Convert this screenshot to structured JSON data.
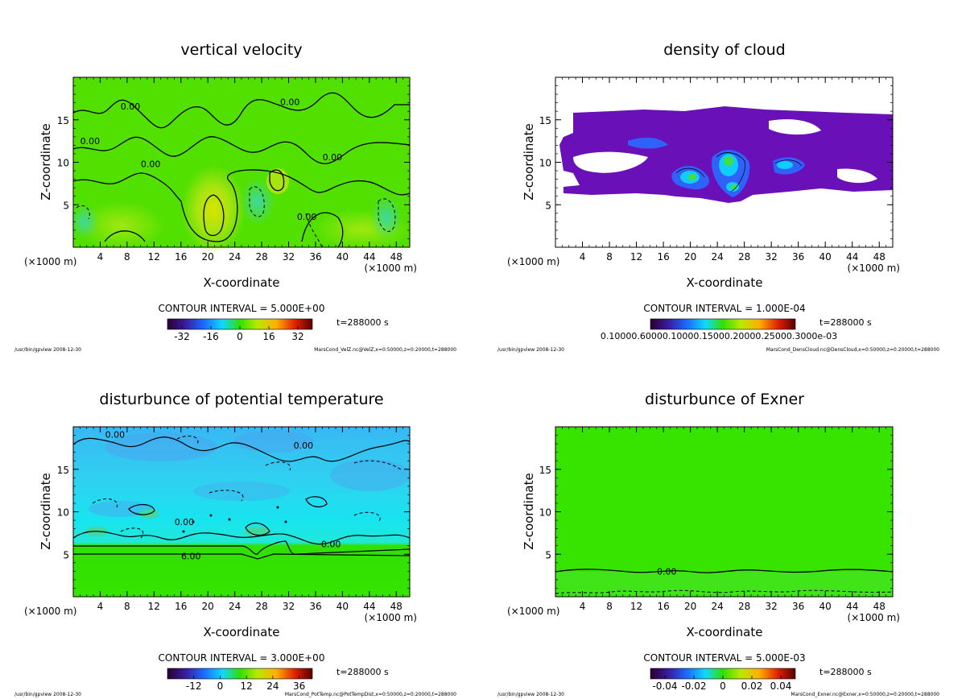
{
  "chart_data": [
    {
      "id": "velz",
      "type": "heatmap",
      "title": "vertical velocity",
      "xlabel": "X-coordinate",
      "ylabel": "Z-coordinate",
      "xunit_left": "(×1000 m)",
      "xunit_right": "(×1000 m)",
      "xticks": [
        4,
        8,
        12,
        16,
        20,
        24,
        28,
        32,
        36,
        40,
        44,
        48
      ],
      "yticks": [
        5,
        10,
        15
      ],
      "xlim": [
        0,
        50
      ],
      "ylim": [
        0,
        20
      ],
      "contour_interval": "CONTOUR INTERVAL = 5.000E+00",
      "time_label": "t=288000 s",
      "colorbar_ticks": [
        "-32",
        "-16",
        "0",
        "16",
        "32"
      ],
      "colorbar_range": [
        -40,
        40
      ],
      "contour_labels": [
        {
          "text": "0.00",
          "x": 8.5,
          "y": 16.6
        },
        {
          "text": "0.00",
          "x": 2.5,
          "y": 12.5
        },
        {
          "text": "0.00",
          "x": 11.5,
          "y": 9.8
        },
        {
          "text": "0.00",
          "x": 32.2,
          "y": 17.1
        },
        {
          "text": "0.00",
          "x": 38.5,
          "y": 10.6
        },
        {
          "text": "0.00",
          "x": 34.7,
          "y": 3.6
        }
      ],
      "footer_left": "/usr/bin/gpview 2008-12-30",
      "footer_right": "MarsCond_VelZ.nc@VelZ,x=0:50000,z=0:20000,t=288000"
    },
    {
      "id": "cloud",
      "type": "heatmap",
      "title": "density of cloud",
      "xlabel": "X-coordinate",
      "ylabel": "Z-coordinate",
      "xunit_left": "(×1000 m)",
      "xunit_right": "(×1000 m)",
      "xticks": [
        4,
        8,
        12,
        16,
        20,
        24,
        28,
        32,
        36,
        40,
        44,
        48
      ],
      "yticks": [
        5,
        10,
        15
      ],
      "xlim": [
        0,
        50
      ],
      "ylim": [
        0,
        20
      ],
      "contour_interval": "CONTOUR INTERVAL = 1.000E-04",
      "time_label": "t=288000 s",
      "colorbar_tick_text": "0.10000.60000.10000.15000.20000.25000.3000e-03",
      "footer_left": "/usr/bin/gpview 2008-12-30",
      "footer_right": "MarsCond_DensCloud.nc@DensCloud,x=0:50000,z=0:20000,t=288000"
    },
    {
      "id": "pottemp",
      "type": "heatmap",
      "title": "disturbunce of potential temperature",
      "xlabel": "X-coordinate",
      "ylabel": "Z-coordinate",
      "xunit_left": "(×1000 m)",
      "xunit_right": "(×1000 m)",
      "xticks": [
        4,
        8,
        12,
        16,
        20,
        24,
        28,
        32,
        36,
        40,
        44,
        48
      ],
      "yticks": [
        5,
        10,
        15
      ],
      "xlim": [
        0,
        50
      ],
      "ylim": [
        0,
        20
      ],
      "contour_interval": "CONTOUR INTERVAL = 3.000E+00",
      "time_label": "t=288000 s",
      "colorbar_ticks": [
        "-12",
        "0",
        "12",
        "24",
        "36"
      ],
      "colorbar_range": [
        -24,
        42
      ],
      "contour_labels": [
        {
          "text": "0.00",
          "x": 6.2,
          "y": 19.1
        },
        {
          "text": "0.00",
          "x": 34.2,
          "y": 17.8
        },
        {
          "text": "0.00",
          "x": 16.5,
          "y": 8.8
        },
        {
          "text": "0.00",
          "x": 38.3,
          "y": 6.2
        },
        {
          "text": "6.00",
          "x": 17.5,
          "y": 4.8
        }
      ],
      "footer_left": "/usr/bin/gpview 2008-12-30",
      "footer_right": "MarsCond_PotTemp.nc@PotTempDist,x=0:50000,z=0:20000,t=288000"
    },
    {
      "id": "exner",
      "type": "heatmap",
      "title": "disturbunce of Exner",
      "xlabel": "X-coordinate",
      "ylabel": "Z-coordinate",
      "xunit_left": "(×1000 m)",
      "xunit_right": "(×1000 m)",
      "xticks": [
        4,
        8,
        12,
        16,
        20,
        24,
        28,
        32,
        36,
        40,
        44,
        48
      ],
      "yticks": [
        5,
        10,
        15
      ],
      "xlim": [
        0,
        50
      ],
      "ylim": [
        0,
        20
      ],
      "contour_interval": "CONTOUR INTERVAL = 5.000E-03",
      "time_label": "t=288000 s",
      "colorbar_ticks": [
        "-0.04",
        "-0.02",
        "0",
        "0.02",
        "0.04"
      ],
      "colorbar_range": [
        -0.05,
        0.05
      ],
      "contour_labels": [
        {
          "text": "0.00",
          "x": 16.5,
          "y": 3.0
        }
      ],
      "footer_left": "/usr/bin/gpview 2008-12-30",
      "footer_right": "MarsCond_Exner.nc@Exner,x=0:50000,z=0:20000,t=288000"
    }
  ]
}
